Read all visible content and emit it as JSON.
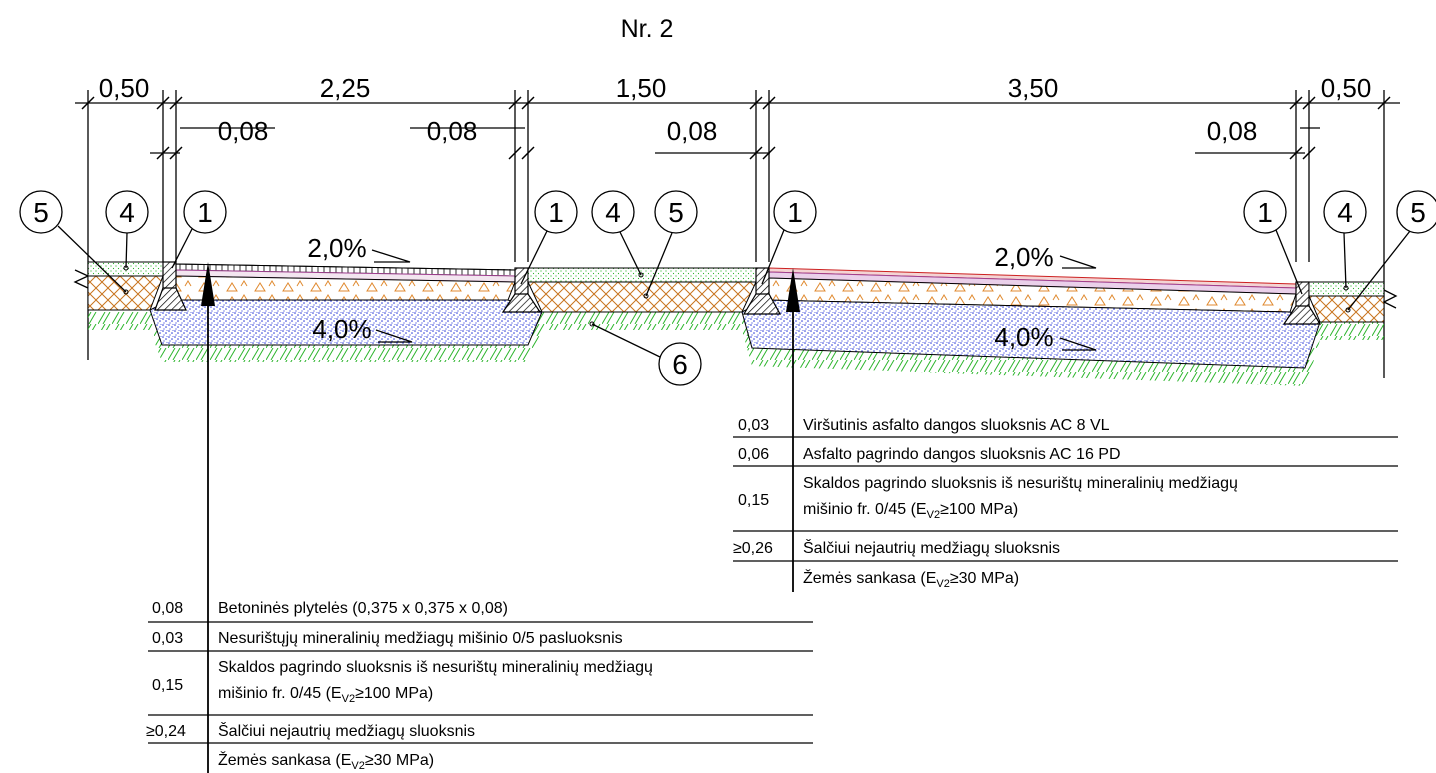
{
  "title": "Nr. 2",
  "dimensions_top": [
    "0,50",
    "2,25",
    "1,50",
    "3,50",
    "0,50"
  ],
  "dimensions_curb": [
    "0,08",
    "0,08",
    "0,08",
    "0,08"
  ],
  "callouts": [
    "5",
    "4",
    "1",
    "1",
    "4",
    "5",
    "1",
    "1",
    "4",
    "5",
    "6"
  ],
  "slopes": {
    "surface_left": "2,0%",
    "surface_right": "2,0%",
    "base_left": "4,0%",
    "base_right": "4,0%"
  },
  "road_layers": [
    {
      "thickness": "0,03",
      "description": "Viršutinis asfalto dangos sluoksnis AC 8 VL"
    },
    {
      "thickness": "0,06",
      "description": "Asfalto pagrindo dangos sluoksnis AC 16 PD"
    },
    {
      "thickness": "0,15",
      "description_line1": "Skaldos pagrindo sluoksnis iš nesurištų mineralinių medžiagų",
      "description_line2": "mišinio fr. 0/45 (E",
      "sub": "V2",
      "description_line2_end": "≥100 MPa)"
    },
    {
      "thickness": "≥0,26",
      "description": "Šalčiui nejautrių medžiagų sluoksnis"
    },
    {
      "thickness": "",
      "description": "Žemės sankasa (E",
      "sub": "V2",
      "description_end": "≥30 MPa)"
    }
  ],
  "sidewalk_layers": [
    {
      "thickness": "0,08",
      "description": "Betoninės plytelės (0,375 x 0,375 x 0,08)"
    },
    {
      "thickness": "0,03",
      "description": "Nesurištųjų mineralinių medžiagų mišinio 0/5 pasluoksnis"
    },
    {
      "thickness": "0,15",
      "description_line1": "Skaldos pagrindo sluoksnis iš nesurištų mineralinių medžiagų",
      "description_line2": "mišinio fr. 0/45 (E",
      "sub": "V2",
      "description_line2_end": "≥100 MPa)"
    },
    {
      "thickness": "≥0,24",
      "description": "Šalčiui nejautrių medžiagų sluoksnis"
    },
    {
      "thickness": "",
      "description": "Žemės sankasa (E",
      "sub": "V2",
      "description_end": "≥30 MPa)"
    }
  ],
  "colors": {
    "green_lawn": "#2db52d",
    "soil_orange": "#c8741e",
    "gravel_blue": "#2a3ad8",
    "asphalt_red": "#cc2020",
    "sand_orange": "#e08a30"
  }
}
